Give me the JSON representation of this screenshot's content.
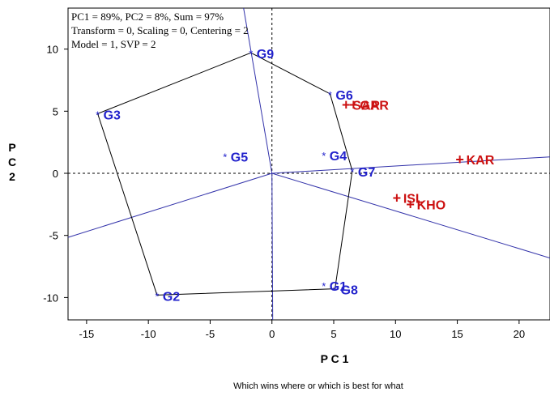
{
  "chart_data": {
    "type": "scatter",
    "caption": "Which wins where or which is best for what",
    "info_lines": [
      "PC1 = 89%, PC2 = 8%, Sum = 97%",
      "Transform = 0, Scaling = 0, Centering = 2",
      "Model = 1, SVP = 2"
    ],
    "xlabel": "P C 1",
    "ylabel": [
      "P",
      "C",
      "2"
    ],
    "xlim": [
      -16.5,
      22.5
    ],
    "ylim": [
      -11.8,
      13.3
    ],
    "xticks": [
      -15,
      -10,
      -5,
      0,
      5,
      10,
      15,
      20
    ],
    "yticks": [
      -10,
      -5,
      0,
      5,
      10
    ],
    "colors": {
      "genotype": "#2222cc",
      "environment": "#cc1111",
      "line": "#3333aa",
      "hull": "#000000"
    },
    "genotypes": [
      {
        "name": "G1",
        "x": 4.2,
        "y": -9.0
      },
      {
        "name": "G2",
        "x": -9.3,
        "y": -9.8
      },
      {
        "name": "G3",
        "x": -14.1,
        "y": 4.8
      },
      {
        "name": "G4",
        "x": 4.2,
        "y": 1.5
      },
      {
        "name": "G5",
        "x": -3.8,
        "y": 1.4
      },
      {
        "name": "G6",
        "x": 4.7,
        "y": 6.4
      },
      {
        "name": "G7",
        "x": 6.5,
        "y": 0.2
      },
      {
        "name": "G8",
        "x": 5.1,
        "y": -9.3
      },
      {
        "name": "G9",
        "x": -1.7,
        "y": 9.7
      }
    ],
    "environments": [
      {
        "name": "SAR",
        "x": 6.0,
        "y": 5.5
      },
      {
        "name": "GAR",
        "x": 6.6,
        "y": 5.5
      },
      {
        "name": "KAR",
        "x": 15.2,
        "y": 1.1
      },
      {
        "name": "ISL",
        "x": 10.1,
        "y": -2.0
      },
      {
        "name": "KHO",
        "x": 11.2,
        "y": -2.5
      }
    ],
    "hull_order": [
      "G9",
      "G6",
      "G7",
      "G8",
      "G2",
      "G3"
    ],
    "sector_line_directions": [
      {
        "x": -1.45,
        "y": 8.4
      },
      {
        "x": 5.1,
        "y": 0.3
      },
      {
        "x": 3.3,
        "y": -1.0
      },
      {
        "x": 0.05,
        "y": -9.5
      },
      {
        "x": -9.6,
        "y": -3.0
      }
    ]
  }
}
